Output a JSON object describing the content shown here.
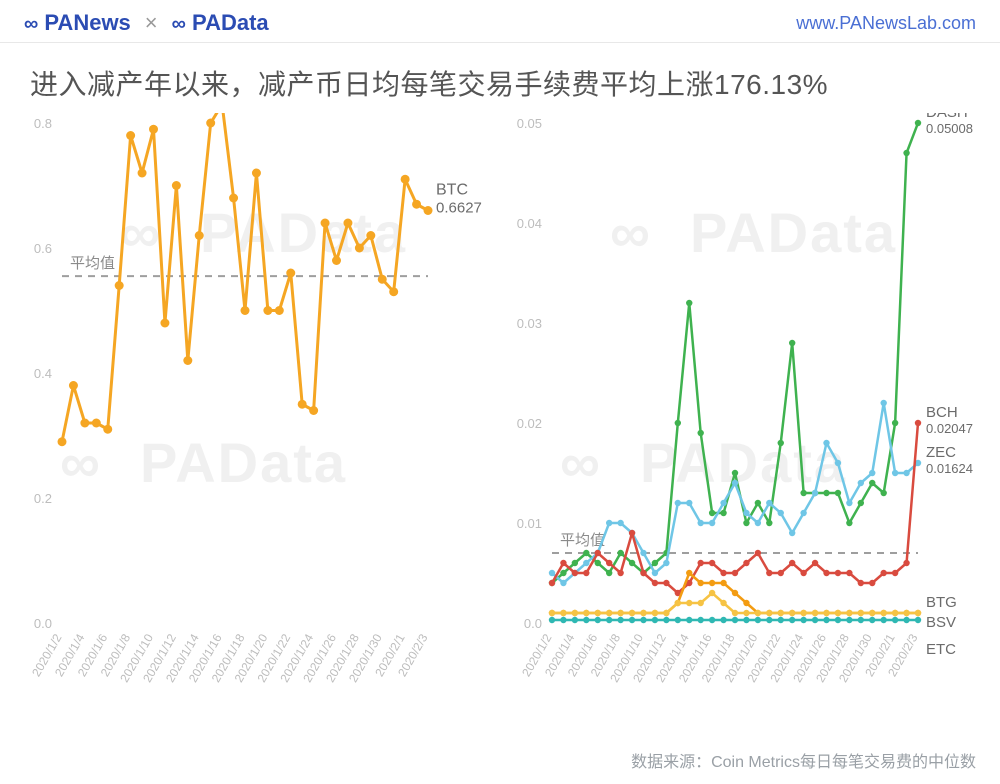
{
  "header": {
    "brand1": "PANews",
    "separator": "×",
    "brand2": "PAData",
    "url": "www.PANewsLab.com"
  },
  "title": "进入减产年以来，减产币日均每笔交易手续费平均上涨176.13%",
  "footer": "数据来源：Coin Metrics每日每笔交易费的中位数",
  "watermark": "PAData",
  "x_categories": [
    "2020/1/2",
    "2020/1/4",
    "2020/1/6",
    "2020/1/8",
    "2020/1/10",
    "2020/1/12",
    "2020/1/14",
    "2020/1/16",
    "2020/1/18",
    "2020/1/20",
    "2020/1/22",
    "2020/1/24",
    "2020/1/26",
    "2020/1/28",
    "2020/1/30",
    "2020/2/1",
    "2020/2/3"
  ],
  "left_chart": {
    "type": "line",
    "ylim": [
      0.0,
      0.8
    ],
    "yticks": [
      0.0,
      0.2,
      0.4,
      0.6,
      0.8
    ],
    "tick_color": "#bdbdbd",
    "tick_fontsize": 13,
    "line_color": "#f5a623",
    "line_width": 3,
    "marker_size": 4.5,
    "avg_label": "平均值",
    "avg_color": "#9e9e9e",
    "avg_value": 0.555,
    "series": {
      "name": "BTC",
      "end_label": "BTC",
      "end_value_label": "0.6627",
      "data": [
        0.29,
        0.38,
        0.32,
        0.32,
        0.31,
        0.54,
        0.78,
        0.72,
        0.79,
        0.48,
        0.7,
        0.42,
        0.62,
        0.8,
        0.83,
        0.68,
        0.5,
        0.72,
        0.5,
        0.5,
        0.56,
        0.35,
        0.34,
        0.64,
        0.58,
        0.64,
        0.6,
        0.62,
        0.55,
        0.53,
        0.71,
        0.67,
        0.66
      ]
    },
    "label_color": "#6b6b6b",
    "background": "#ffffff"
  },
  "right_chart": {
    "type": "line",
    "ylim": [
      0.0,
      0.05
    ],
    "yticks": [
      0.0,
      0.01,
      0.02,
      0.03,
      0.04,
      0.05
    ],
    "tick_color": "#bdbdbd",
    "tick_fontsize": 13,
    "avg_label": "平均值",
    "avg_color": "#9e9e9e",
    "avg_value": 0.007,
    "label_color": "#6b6b6b",
    "background": "#ffffff",
    "series": [
      {
        "name": "DASH",
        "color": "#3fb24f",
        "end_value_label": "0.05008",
        "data": [
          0.004,
          0.005,
          0.006,
          0.007,
          0.006,
          0.005,
          0.007,
          0.006,
          0.005,
          0.006,
          0.007,
          0.02,
          0.032,
          0.019,
          0.011,
          0.011,
          0.015,
          0.01,
          0.012,
          0.01,
          0.018,
          0.028,
          0.013,
          0.013,
          0.013,
          0.013,
          0.01,
          0.012,
          0.014,
          0.013,
          0.02,
          0.047,
          0.05
        ]
      },
      {
        "name": "ZEC",
        "color": "#6fc6e6",
        "end_value_label": "0.01624",
        "data": [
          0.005,
          0.004,
          0.005,
          0.006,
          0.007,
          0.01,
          0.01,
          0.009,
          0.007,
          0.005,
          0.006,
          0.012,
          0.012,
          0.01,
          0.01,
          0.012,
          0.014,
          0.011,
          0.01,
          0.012,
          0.011,
          0.009,
          0.011,
          0.013,
          0.018,
          0.016,
          0.012,
          0.014,
          0.015,
          0.022,
          0.015,
          0.015,
          0.016
        ]
      },
      {
        "name": "BCH",
        "color": "#d94b3f",
        "end_value_label": "0.02047",
        "data": [
          0.004,
          0.006,
          0.005,
          0.005,
          0.007,
          0.006,
          0.005,
          0.009,
          0.005,
          0.004,
          0.004,
          0.003,
          0.004,
          0.006,
          0.006,
          0.005,
          0.005,
          0.006,
          0.007,
          0.005,
          0.005,
          0.006,
          0.005,
          0.006,
          0.005,
          0.005,
          0.005,
          0.004,
          0.004,
          0.005,
          0.005,
          0.006,
          0.02
        ]
      },
      {
        "name": "BTG",
        "color": "#f39c12",
        "end_value_label": "",
        "data": [
          0.001,
          0.001,
          0.001,
          0.001,
          0.001,
          0.001,
          0.001,
          0.001,
          0.001,
          0.001,
          0.001,
          0.002,
          0.005,
          0.004,
          0.004,
          0.004,
          0.003,
          0.002,
          0.001,
          0.001,
          0.001,
          0.001,
          0.001,
          0.001,
          0.001,
          0.001,
          0.001,
          0.001,
          0.001,
          0.001,
          0.001,
          0.001,
          0.001
        ]
      },
      {
        "name": "BSV",
        "color": "#f6c344",
        "end_value_label": "",
        "data": [
          0.001,
          0.001,
          0.001,
          0.001,
          0.001,
          0.001,
          0.001,
          0.001,
          0.001,
          0.001,
          0.001,
          0.002,
          0.002,
          0.002,
          0.003,
          0.002,
          0.001,
          0.001,
          0.001,
          0.001,
          0.001,
          0.001,
          0.001,
          0.001,
          0.001,
          0.001,
          0.001,
          0.001,
          0.001,
          0.001,
          0.001,
          0.001,
          0.001
        ]
      },
      {
        "name": "ETC",
        "color": "#2fb8b3",
        "end_value_label": "",
        "data": [
          0.0003,
          0.0003,
          0.0003,
          0.0003,
          0.0003,
          0.0003,
          0.0003,
          0.0003,
          0.0003,
          0.0003,
          0.0003,
          0.0003,
          0.0003,
          0.0003,
          0.0003,
          0.0003,
          0.0003,
          0.0003,
          0.0003,
          0.0003,
          0.0003,
          0.0003,
          0.0003,
          0.0003,
          0.0003,
          0.0003,
          0.0003,
          0.0003,
          0.0003,
          0.0003,
          0.0003,
          0.0003,
          0.0003
        ]
      }
    ],
    "end_labels_right": [
      {
        "name": "DASH",
        "value": "0.05008",
        "color": "#6b6b6b"
      },
      {
        "name": "BCH",
        "value": "0.02047",
        "color": "#6b6b6b"
      },
      {
        "name": "ZEC",
        "value": "0.01624",
        "color": "#6b6b6b"
      },
      {
        "name": "BTG",
        "value": "",
        "color": "#6b6b6b"
      },
      {
        "name": "BSV",
        "value": "",
        "color": "#6b6b6b"
      },
      {
        "name": "ETC",
        "value": "",
        "color": "#6b6b6b"
      }
    ]
  }
}
